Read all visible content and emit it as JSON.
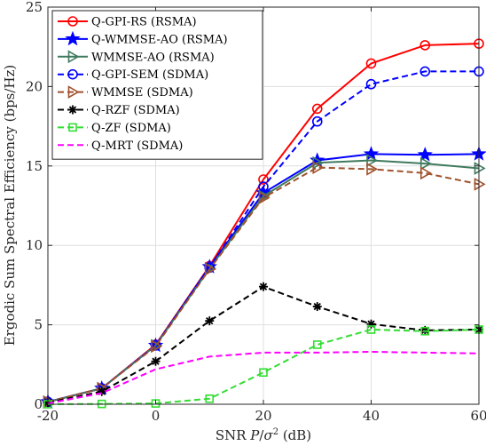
{
  "chart_data": {
    "type": "line",
    "title": "",
    "xlabel": "SNR P/σ² (dB)",
    "xlabel_parts": {
      "prefix": "SNR ",
      "var": "P",
      "slash": "/",
      "sigma": "σ",
      "sup": "2",
      "suffix": " (dB)"
    },
    "ylabel": "Ergodic Sum Spectral Efficiency (bps/Hz)",
    "xlim": [
      -20,
      60
    ],
    "ylim": [
      0,
      25
    ],
    "xticks": [
      -20,
      0,
      20,
      40,
      60
    ],
    "yticks": [
      0,
      5,
      10,
      15,
      20,
      25
    ],
    "grid": true,
    "legend_placement": "top-left",
    "x": [
      -20,
      -10,
      0,
      10,
      20,
      30,
      40,
      50,
      60
    ],
    "series": [
      {
        "name": "Q-GPI-RS (RSMA)",
        "color": "#ff0000",
        "dash": "solid",
        "marker": "circle",
        "markers": true,
        "values": [
          0.15,
          1.0,
          3.75,
          8.7,
          14.15,
          18.6,
          21.45,
          22.6,
          22.7
        ]
      },
      {
        "name": "Q-WMMSE-AO (RSMA)",
        "color": "#0000ff",
        "dash": "solid",
        "marker": "star",
        "markers": true,
        "values": [
          0.15,
          1.0,
          3.7,
          8.65,
          13.3,
          15.35,
          15.75,
          15.7,
          15.75
        ]
      },
      {
        "name": "WMMSE-AO (RSMA)",
        "color": "#3f7a5e",
        "dash": "solid",
        "marker": "triangle-right",
        "markers": true,
        "values": [
          0.15,
          1.0,
          3.7,
          8.55,
          13.1,
          15.2,
          15.35,
          15.15,
          14.85
        ]
      },
      {
        "name": "Q-GPI-SEM (SDMA)",
        "color": "#0000ff",
        "dash": "dashed",
        "marker": "circle",
        "markers": true,
        "values": [
          0.15,
          1.0,
          3.7,
          8.6,
          13.7,
          17.8,
          20.15,
          20.95,
          20.95
        ]
      },
      {
        "name": "WMMSE (SDMA)",
        "color": "#a0522d",
        "dash": "dashed",
        "marker": "triangle-right",
        "markers": true,
        "values": [
          0.15,
          1.0,
          3.65,
          8.5,
          13.0,
          14.9,
          14.8,
          14.55,
          13.85
        ]
      },
      {
        "name": "Q-RZF (SDMA)",
        "color": "#000000",
        "dash": "dashed",
        "marker": "asterisk",
        "markers": true,
        "values": [
          0.1,
          0.8,
          2.7,
          5.25,
          7.4,
          6.15,
          5.05,
          4.65,
          4.7
        ]
      },
      {
        "name": "Q-ZF (SDMA)",
        "color": "#33dd33",
        "dash": "dashed",
        "marker": "square",
        "markers": true,
        "values": [
          0.0,
          0.02,
          0.05,
          0.35,
          2.0,
          3.75,
          4.7,
          4.6,
          4.7
        ]
      },
      {
        "name": "Q-MRT (SDMA)",
        "color": "#ff00ff",
        "dash": "dashed",
        "marker": "none",
        "markers": false,
        "values": [
          0.05,
          0.7,
          2.2,
          3.0,
          3.25,
          3.25,
          3.3,
          3.25,
          3.2
        ]
      }
    ]
  }
}
